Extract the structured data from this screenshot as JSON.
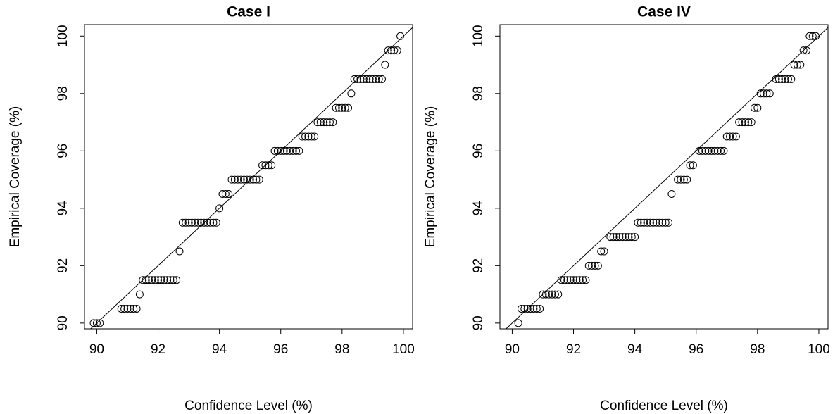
{
  "chart_data": [
    {
      "type": "scatter",
      "title": "Case I",
      "x_label": "Confidence Level (%)",
      "y_label": "Empirical Coverage (%)",
      "x": [
        89.9,
        90.0,
        90.1,
        90.8,
        90.9,
        91.0,
        91.1,
        91.2,
        91.3,
        91.4,
        91.5,
        91.6,
        91.7,
        91.8,
        91.9,
        92.0,
        92.1,
        92.2,
        92.3,
        92.4,
        92.5,
        92.6,
        92.7,
        92.8,
        92.9,
        93.0,
        93.1,
        93.2,
        93.3,
        93.4,
        93.5,
        93.6,
        93.7,
        93.8,
        93.9,
        94.0,
        94.1,
        94.2,
        94.3,
        94.4,
        94.5,
        94.6,
        94.7,
        94.8,
        94.9,
        95.0,
        95.1,
        95.2,
        95.3,
        95.4,
        95.5,
        95.6,
        95.7,
        95.8,
        95.9,
        96.0,
        96.1,
        96.2,
        96.3,
        96.4,
        96.5,
        96.6,
        96.7,
        96.8,
        96.9,
        97.0,
        97.1,
        97.2,
        97.3,
        97.4,
        97.5,
        97.6,
        97.7,
        97.8,
        97.9,
        98.0,
        98.1,
        98.2,
        98.3,
        98.4,
        98.5,
        98.6,
        98.7,
        98.8,
        98.9,
        99.0,
        99.1,
        99.2,
        99.3,
        99.4,
        99.5,
        99.6,
        99.7,
        99.8,
        99.9
      ],
      "values": [
        90,
        90,
        90,
        90.5,
        90.5,
        90.5,
        90.5,
        90.5,
        90.5,
        91,
        91.5,
        91.5,
        91.5,
        91.5,
        91.5,
        91.5,
        91.5,
        91.5,
        91.5,
        91.5,
        91.5,
        91.5,
        92.5,
        93.5,
        93.5,
        93.5,
        93.5,
        93.5,
        93.5,
        93.5,
        93.5,
        93.5,
        93.5,
        93.5,
        93.5,
        94,
        94.5,
        94.5,
        94.5,
        95,
        95,
        95,
        95,
        95,
        95,
        95,
        95,
        95,
        95,
        95.5,
        95.5,
        95.5,
        95.5,
        96,
        96,
        96,
        96,
        96,
        96,
        96,
        96,
        96,
        96.5,
        96.5,
        96.5,
        96.5,
        96.5,
        97,
        97,
        97,
        97,
        97,
        97,
        97.5,
        97.5,
        97.5,
        97.5,
        97.5,
        98,
        98.5,
        98.5,
        98.5,
        98.5,
        98.5,
        98.5,
        98.5,
        98.5,
        98.5,
        98.5,
        99,
        99.5,
        99.5,
        99.5,
        99.5,
        100
      ],
      "xlim": [
        89.6,
        100.3
      ],
      "ylim": [
        89.8,
        100.4
      ],
      "xticks": [
        90,
        92,
        94,
        96,
        98,
        100
      ],
      "yticks": [
        90,
        92,
        94,
        96,
        98,
        100
      ],
      "diagonal": true,
      "color": "#000000"
    },
    {
      "type": "scatter",
      "title": "Case IV",
      "x_label": "Confidence Level (%)",
      "y_label": "Empirical Coverage (%)",
      "x": [
        90.2,
        90.3,
        90.4,
        90.5,
        90.6,
        90.7,
        90.8,
        90.9,
        91.0,
        91.1,
        91.2,
        91.3,
        91.4,
        91.5,
        91.6,
        91.7,
        91.8,
        91.9,
        92.0,
        92.1,
        92.2,
        92.3,
        92.4,
        92.5,
        92.6,
        92.7,
        92.8,
        92.9,
        93.0,
        93.2,
        93.3,
        93.4,
        93.5,
        93.6,
        93.7,
        93.8,
        93.9,
        94.0,
        94.1,
        94.2,
        94.3,
        94.4,
        94.5,
        94.6,
        94.7,
        94.8,
        94.9,
        95.0,
        95.1,
        95.2,
        95.4,
        95.5,
        95.6,
        95.7,
        95.8,
        95.9,
        96.1,
        96.2,
        96.3,
        96.4,
        96.5,
        96.6,
        96.7,
        96.8,
        96.9,
        97.0,
        97.1,
        97.2,
        97.3,
        97.4,
        97.5,
        97.6,
        97.7,
        97.8,
        97.9,
        98.0,
        98.1,
        98.2,
        98.3,
        98.4,
        98.6,
        98.7,
        98.8,
        98.9,
        99.0,
        99.1,
        99.2,
        99.3,
        99.4,
        99.5,
        99.6,
        99.7,
        99.8,
        99.9
      ],
      "values": [
        90,
        90.5,
        90.5,
        90.5,
        90.5,
        90.5,
        90.5,
        90.5,
        91,
        91,
        91,
        91,
        91,
        91,
        91.5,
        91.5,
        91.5,
        91.5,
        91.5,
        91.5,
        91.5,
        91.5,
        91.5,
        92,
        92,
        92,
        92,
        92.5,
        92.5,
        93,
        93,
        93,
        93,
        93,
        93,
        93,
        93,
        93,
        93.5,
        93.5,
        93.5,
        93.5,
        93.5,
        93.5,
        93.5,
        93.5,
        93.5,
        93.5,
        93.5,
        94.5,
        95,
        95,
        95,
        95,
        95.5,
        95.5,
        96,
        96,
        96,
        96,
        96,
        96,
        96,
        96,
        96,
        96.5,
        96.5,
        96.5,
        96.5,
        97,
        97,
        97,
        97,
        97,
        97.5,
        97.5,
        98,
        98,
        98,
        98,
        98.5,
        98.5,
        98.5,
        98.5,
        98.5,
        98.5,
        99,
        99,
        99,
        99.5,
        99.5,
        100,
        100,
        100
      ],
      "xlim": [
        89.6,
        100.3
      ],
      "ylim": [
        89.8,
        100.4
      ],
      "xticks": [
        90,
        92,
        94,
        96,
        98,
        100
      ],
      "yticks": [
        90,
        92,
        94,
        96,
        98,
        100
      ],
      "diagonal": true,
      "color": "#000000"
    }
  ]
}
